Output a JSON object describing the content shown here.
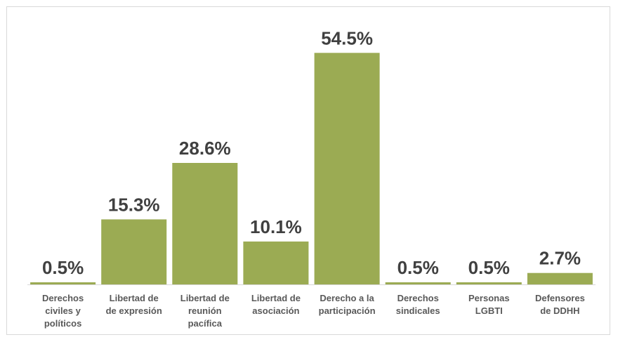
{
  "chart_data": {
    "type": "bar",
    "categories": [
      [
        "Derechos",
        "civiles y",
        "políticos"
      ],
      [
        "Libertad de",
        "de expresión"
      ],
      [
        "Libertad de",
        "reunión",
        "pacífica"
      ],
      [
        "Libertad de",
        "asociación"
      ],
      [
        "Derecho a la",
        "participación"
      ],
      [
        "Derechos",
        "sindicales"
      ],
      [
        "Personas",
        "LGBTI"
      ],
      [
        "Defensores",
        "de DDHH"
      ]
    ],
    "values": [
      0.5,
      15.3,
      28.6,
      10.1,
      54.5,
      0.5,
      0.5,
      2.7
    ],
    "value_labels": [
      "0.5%",
      "15.3%",
      "28.6%",
      "10.1%",
      "54.5%",
      "0.5%",
      "0.5%",
      "2.7%"
    ],
    "title": "",
    "xlabel": "",
    "ylabel": "",
    "ylim": [
      0,
      60
    ],
    "grid": false,
    "legend": "none",
    "bar_color": "#9bab53",
    "axis_color": "#d9d9d9"
  }
}
